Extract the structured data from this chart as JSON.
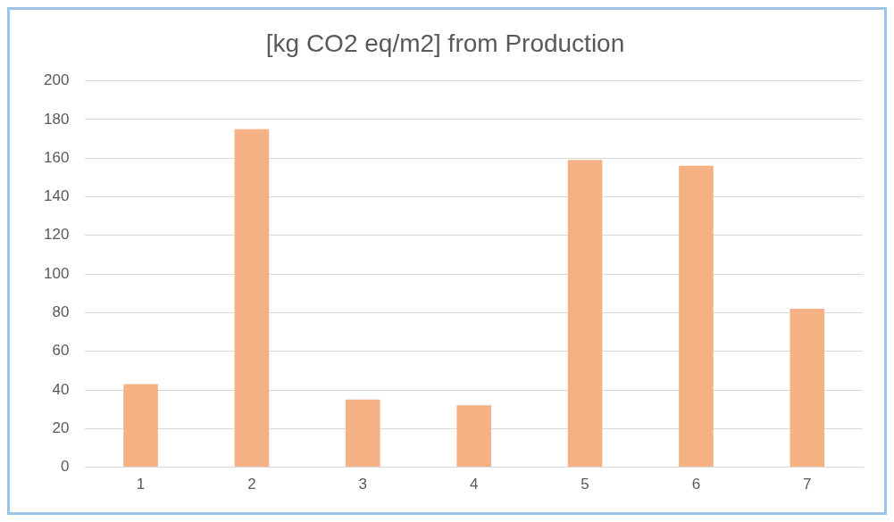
{
  "chart_data": {
    "type": "bar",
    "title": "[kg CO2 eq/m2] from Production",
    "categories": [
      "1",
      "2",
      "3",
      "4",
      "5",
      "6",
      "7"
    ],
    "values": [
      43,
      175,
      35,
      32,
      159,
      156,
      82
    ],
    "color": "#f4b183",
    "ylim": [
      0,
      200
    ],
    "yticks": [
      0,
      20,
      40,
      60,
      80,
      100,
      120,
      140,
      160,
      180,
      200
    ],
    "grid": "y"
  }
}
